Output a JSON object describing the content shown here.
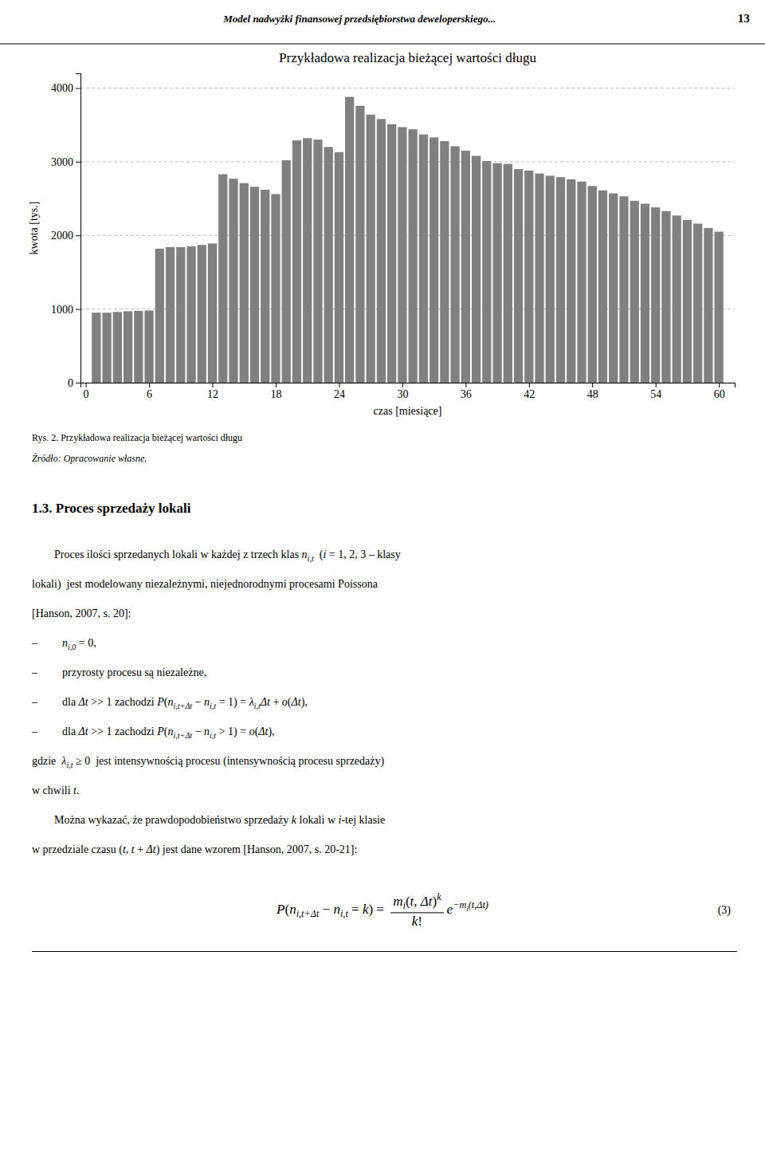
{
  "chart_data": {
    "type": "bar",
    "title": "Przykładowa realizacja bieżącej wartości długu",
    "xlabel": "czas [miesiące]",
    "ylabel": "kwota [tys.]",
    "color": "#808080",
    "x": [
      1,
      2,
      3,
      4,
      5,
      6,
      7,
      8,
      9,
      10,
      11,
      12,
      13,
      14,
      15,
      16,
      17,
      18,
      19,
      20,
      21,
      22,
      23,
      24,
      25,
      26,
      27,
      28,
      29,
      30,
      31,
      32,
      33,
      34,
      35,
      36,
      37,
      38,
      39,
      40,
      41,
      42,
      43,
      44,
      45,
      46,
      47,
      48,
      49,
      50,
      51,
      52,
      53,
      54,
      55,
      56,
      57,
      58,
      59,
      60
    ],
    "values": [
      950,
      950,
      960,
      970,
      975,
      980,
      1820,
      1840,
      1840,
      1850,
      1870,
      1890,
      2830,
      2770,
      2710,
      2660,
      2620,
      2560,
      3020,
      3290,
      3320,
      3300,
      3200,
      3130,
      3880,
      3760,
      3640,
      3580,
      3510,
      3470,
      3440,
      3370,
      3330,
      3280,
      3210,
      3150,
      3080,
      3010,
      2980,
      2970,
      2900,
      2880,
      2840,
      2810,
      2790,
      2760,
      2730,
      2670,
      2610,
      2570,
      2530,
      2470,
      2430,
      2380,
      2330,
      2270,
      2210,
      2160,
      2100,
      2050
    ],
    "xlim": [
      -0.5,
      61.5
    ],
    "xticks": [
      0,
      6,
      12,
      18,
      24,
      30,
      36,
      42,
      48,
      54,
      60
    ],
    "ylim": [
      0,
      4200
    ],
    "yticks": [
      0,
      1000,
      2000,
      3000,
      4000
    ],
    "grid": true
  },
  "page": {
    "header_text": "Model nadwyżki finansowej przedsiębiorstwa deweloperskiego...",
    "header_page": "13",
    "caption_rys": "Rys. 2. Przykładowa realizacja bieżącej wartości długu",
    "caption_zrodlo": "Źródło: Opracowanie własne.",
    "section_title": "1.3. Proces sprzedaży lokali",
    "lines": [
      {
        "pieces": [
          "        Proces ilości sprzedanych lokali w każdej z trzech klas ",
          {
            "m": "n",
            "sub": "i,t"
          },
          "  (",
          {
            "m": "i"
          },
          " = 1, 2, 3 – klasy"
        ]
      },
      {
        "pieces": [
          "lokali)  jest modelowany niezależnymi, niejednorodnymi procesami Poissona"
        ]
      },
      {
        "pieces": [
          "[Hanson, 2007, s. 20]:"
        ]
      },
      {
        "bullet": "–",
        "pieces": [
          {
            "m": "n",
            "sub": "i,0"
          },
          " = 0,"
        ]
      },
      {
        "bullet": "–",
        "pieces": [
          "przyrosty procesu są niezależne,"
        ]
      },
      {
        "bullet": "–",
        "pieces": [
          "dla ",
          {
            "m": "Δt"
          },
          " >> 1 zachodzi ",
          {
            "m": "P"
          },
          "(",
          {
            "m": "n",
            "sub": "i,t+Δt"
          },
          " − ",
          {
            "m": "n",
            "sub": "i,t"
          },
          " = 1) = ",
          {
            "m": "λ",
            "sub": "i,t"
          },
          {
            "m": "Δt"
          },
          " + ",
          {
            "m": "o"
          },
          "(",
          {
            "m": "Δt"
          },
          "),"
        ]
      },
      {
        "bullet": "–",
        "pieces": [
          "dla ",
          {
            "m": "Δt"
          },
          " >> 1 zachodzi ",
          {
            "m": "P"
          },
          "(",
          {
            "m": "n",
            "sub": "i,t+Δt"
          },
          " − ",
          {
            "m": "n",
            "sub": "i,t"
          },
          " > 1) = ",
          {
            "m": "o"
          },
          "(",
          {
            "m": "Δt"
          },
          "),"
        ]
      },
      {
        "pieces": [
          "gdzie  ",
          {
            "m": "λ",
            "sub": "i,t"
          },
          " ≥ 0  jest intensywnością procesu (intensywnością procesu sprzedaży)"
        ]
      },
      {
        "pieces": [
          "w chwili ",
          {
            "m": "t"
          },
          "."
        ]
      },
      {
        "pieces": [
          "        Można wykazać, że prawdopodobieństwo sprzedaży ",
          {
            "m": "k"
          },
          " lokali w ",
          {
            "m": "i"
          },
          "-tej klasie"
        ]
      },
      {
        "pieces": [
          "w przedziale czasu (",
          {
            "m": "t"
          },
          ", ",
          {
            "m": "t"
          },
          " + ",
          {
            "m": "Δt"
          },
          ") jest dane wzorem [Hanson, 2007, s. 20-21]:"
        ]
      }
    ],
    "formula": {
      "pieces": [
        {
          "m": "P"
        },
        "(",
        {
          "m": "n",
          "sub": "i,t+Δt"
        },
        " − ",
        {
          "m": "n",
          "sub": "i,t"
        },
        " = ",
        {
          "m": "k"
        },
        ") = ",
        {
          "num": [
            {
              "m": "m",
              "sub": "i"
            },
            "(",
            {
              "m": "t"
            },
            ", ",
            {
              "m": "Δt"
            },
            ")",
            {
              "sup": "k"
            }
          ],
          "den": [
            {
              "m": "k"
            },
            "!"
          ]
        },
        {
          "m": "e",
          "sup": [
            "−",
            {
              "m": "m",
              "sub": "i"
            },
            "(",
            {
              "m": "t"
            },
            ",",
            {
              "m": "Δt"
            },
            ")"
          ]
        }
      ],
      "number": "(3)"
    }
  }
}
